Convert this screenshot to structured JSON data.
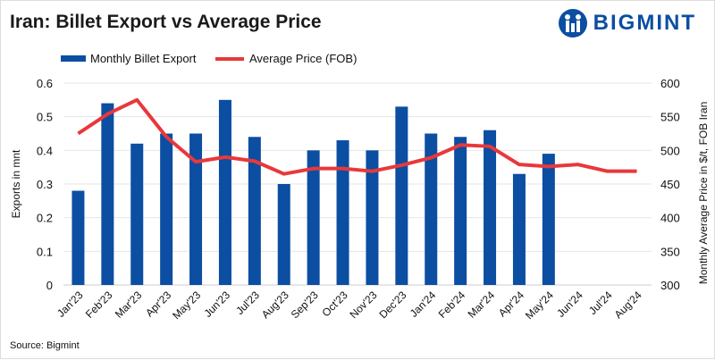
{
  "header": {
    "title": "Iran: Billet Export vs Average Price",
    "logo_text": "BIGMINT"
  },
  "source": "Source: Bigmint",
  "colors": {
    "bar": "#0b4ea2",
    "line": "#e8383b",
    "grid": "#e6e6e6"
  },
  "chart_data": {
    "type": "bar+line",
    "title": "Iran: Billet Export vs Average Price",
    "categories": [
      "Jan'23",
      "Feb'23",
      "Mar'23",
      "Apr'23",
      "May'23",
      "Jun'23",
      "Jul'23",
      "Aug'23",
      "Sep'23",
      "Oct'23",
      "Nov'23",
      "Dec'23",
      "Jan'24",
      "Feb'24",
      "Mar'24",
      "Apr'24",
      "May'24",
      "Jun'24",
      "Jul'24",
      "Aug'24"
    ],
    "series": [
      {
        "name": "Monthly Billet Export",
        "type": "bar",
        "axis": "left",
        "values": [
          0.28,
          0.54,
          0.42,
          0.45,
          0.45,
          0.55,
          0.44,
          0.3,
          0.4,
          0.43,
          0.4,
          0.53,
          0.45,
          0.44,
          0.46,
          0.33,
          0.39,
          null,
          null,
          null
        ]
      },
      {
        "name": "Average Price (FOB)",
        "type": "line",
        "axis": "right",
        "values": [
          525,
          554,
          575,
          520,
          483,
          490,
          484,
          465,
          473,
          473,
          469,
          478,
          489,
          508,
          506,
          479,
          476,
          479,
          469,
          469
        ]
      }
    ],
    "ylabel": "Exports in mnt",
    "y2label": "Monthly Average Price in $/t, FOB Iran",
    "ylim": [
      0,
      0.6
    ],
    "yticks": [
      "0",
      "0.1",
      "0.2",
      "0.3",
      "0.4",
      "0.5",
      "0.6"
    ],
    "y2lim": [
      300,
      600
    ],
    "y2ticks": [
      "300",
      "350",
      "400",
      "450",
      "500",
      "550",
      "600"
    ],
    "grid": true,
    "legend": "top-left"
  }
}
